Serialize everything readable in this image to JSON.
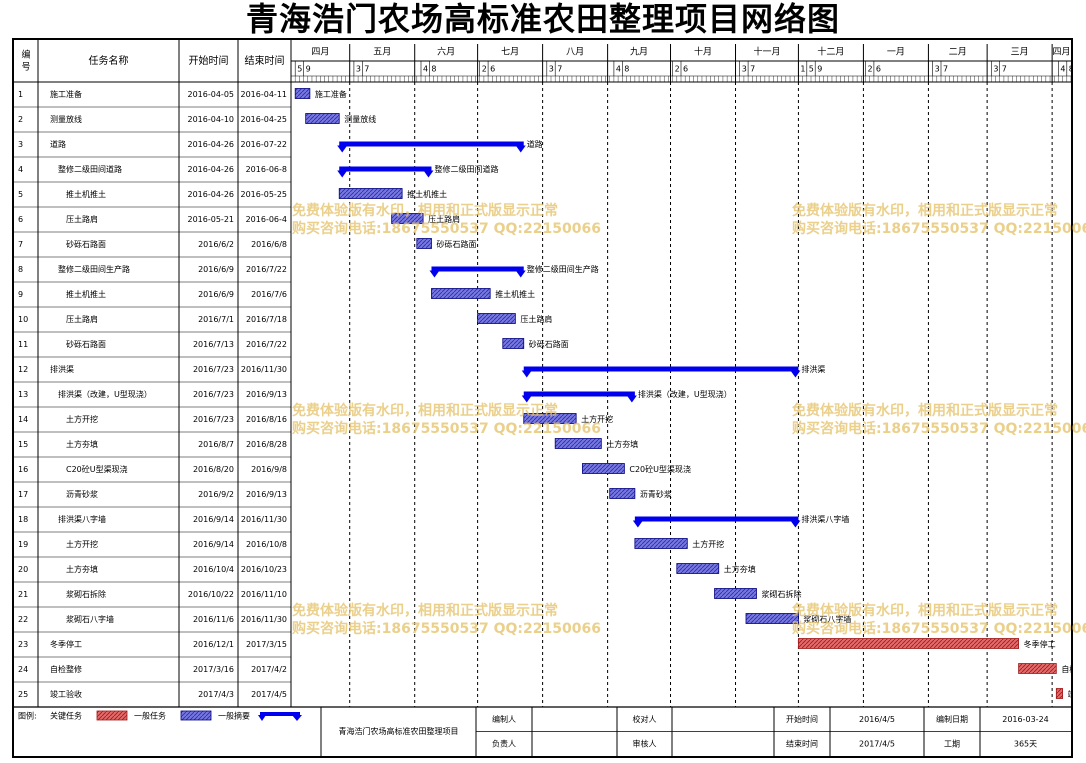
{
  "title": "青海浩门农场高标准农田整理项目网络图",
  "table_headers": {
    "id": "编号",
    "name": "任务名称",
    "start": "开始时间",
    "end": "结束时间"
  },
  "timeline": {
    "months": [
      "四月",
      "五月",
      "六月",
      "七月",
      "八月",
      "九月",
      "十月",
      "十一月",
      "十二月",
      "一月",
      "二月",
      "三月",
      "四月"
    ],
    "day_ticks": [
      {
        "d": "2016-04-05",
        "label": "5"
      },
      {
        "d": "2016-04-09",
        "label": "9"
      },
      {
        "d": "2016-05-03",
        "label": "3"
      },
      {
        "d": "2016-05-07",
        "label": "7"
      },
      {
        "d": "2016-06-04",
        "label": "4"
      },
      {
        "d": "2016-06-08",
        "label": "8"
      },
      {
        "d": "2016-07-02",
        "label": "2"
      },
      {
        "d": "2016-07-06",
        "label": "6"
      },
      {
        "d": "2016-08-03",
        "label": "3"
      },
      {
        "d": "2016-08-07",
        "label": "7"
      },
      {
        "d": "2016-09-04",
        "label": "4"
      },
      {
        "d": "2016-09-08",
        "label": "8"
      },
      {
        "d": "2016-10-02",
        "label": "2"
      },
      {
        "d": "2016-10-06",
        "label": "6"
      },
      {
        "d": "2016-11-03",
        "label": "3"
      },
      {
        "d": "2016-11-07",
        "label": "7"
      },
      {
        "d": "2016-12-01",
        "label": "1"
      },
      {
        "d": "2016-12-05",
        "label": "5"
      },
      {
        "d": "2016-12-09",
        "label": "9"
      },
      {
        "d": "2017-01-02",
        "label": "2"
      },
      {
        "d": "2017-01-06",
        "label": "6"
      },
      {
        "d": "2017-02-03",
        "label": "3"
      },
      {
        "d": "2017-02-07",
        "label": "7"
      },
      {
        "d": "2017-03-03",
        "label": "3"
      },
      {
        "d": "2017-03-07",
        "label": "7"
      },
      {
        "d": "2017-04-04",
        "label": "4"
      },
      {
        "d": "2017-04-08",
        "label": "8"
      }
    ]
  },
  "chart_data": {
    "type": "gantt",
    "title": "青海浩门农场高标准农田整理项目网络图",
    "x_range": [
      "2016-04-03",
      "2017-04-10"
    ],
    "tasks": [
      {
        "id": "1",
        "name": "施工准备",
        "indent": 0,
        "start": "2016-04-05",
        "end": "2016-04-11",
        "kind": "general"
      },
      {
        "id": "2",
        "name": "测量放线",
        "indent": 0,
        "start": "2016-04-10",
        "end": "2016-04-25",
        "kind": "general"
      },
      {
        "id": "3",
        "name": "道路",
        "indent": 0,
        "start": "2016-04-26",
        "end": "2016-07-22",
        "kind": "summary"
      },
      {
        "id": "4",
        "name": "整修二级田间道路",
        "indent": 1,
        "start": "2016-04-26",
        "end": "2016-06-8",
        "kind": "summary"
      },
      {
        "id": "5",
        "name": "推土机推土",
        "indent": 2,
        "start": "2016-04-26",
        "end": "2016-05-25",
        "kind": "general"
      },
      {
        "id": "6",
        "name": "压土路肩",
        "indent": 2,
        "start": "2016-05-21",
        "end": "2016-06-4",
        "kind": "general"
      },
      {
        "id": "7",
        "name": "砂砾石路面",
        "indent": 2,
        "start": "2016/6/2",
        "end": "2016/6/8",
        "kind": "general"
      },
      {
        "id": "8",
        "name": "整修二级田间生产路",
        "indent": 1,
        "start": "2016/6/9",
        "end": "2016/7/22",
        "kind": "summary"
      },
      {
        "id": "9",
        "name": "推土机推土",
        "indent": 2,
        "start": "2016/6/9",
        "end": "2016/7/6",
        "kind": "general"
      },
      {
        "id": "10",
        "name": "压土路肩",
        "indent": 2,
        "start": "2016/7/1",
        "end": "2016/7/18",
        "kind": "general"
      },
      {
        "id": "11",
        "name": "砂砾石路面",
        "indent": 2,
        "start": "2016/7/13",
        "end": "2016/7/22",
        "kind": "general"
      },
      {
        "id": "12",
        "name": "排洪渠",
        "indent": 0,
        "start": "2016/7/23",
        "end": "2016/11/30",
        "kind": "summary"
      },
      {
        "id": "13",
        "name": "排洪渠（改建，U型现浇）",
        "indent": 1,
        "start": "2016/7/23",
        "end": "2016/9/13",
        "kind": "summary"
      },
      {
        "id": "14",
        "name": "土方开挖",
        "indent": 2,
        "start": "2016/7/23",
        "end": "2016/8/16",
        "kind": "general"
      },
      {
        "id": "15",
        "name": "土方夯填",
        "indent": 2,
        "start": "2016/8/7",
        "end": "2016/8/28",
        "kind": "general"
      },
      {
        "id": "16",
        "name": "C20砼U型渠现浇",
        "indent": 2,
        "start": "2016/8/20",
        "end": "2016/9/8",
        "kind": "general"
      },
      {
        "id": "17",
        "name": "沥青砂浆",
        "indent": 2,
        "start": "2016/9/2",
        "end": "2016/9/13",
        "kind": "general"
      },
      {
        "id": "18",
        "name": "排洪渠八字墙",
        "indent": 1,
        "start": "2016/9/14",
        "end": "2016/11/30",
        "kind": "summary"
      },
      {
        "id": "19",
        "name": "土方开挖",
        "indent": 2,
        "start": "2016/9/14",
        "end": "2016/10/8",
        "kind": "general"
      },
      {
        "id": "20",
        "name": "土方夯填",
        "indent": 2,
        "start": "2016/10/4",
        "end": "2016/10/23",
        "kind": "general"
      },
      {
        "id": "21",
        "name": "浆砌石拆除",
        "indent": 2,
        "start": "2016/10/22",
        "end": "2016/11/10",
        "kind": "general"
      },
      {
        "id": "22",
        "name": "浆砌石八字墙",
        "indent": 2,
        "start": "2016/11/6",
        "end": "2016/11/30",
        "kind": "general"
      },
      {
        "id": "23",
        "name": "冬季停工",
        "indent": 0,
        "start": "2016/12/1",
        "end": "2017/3/15",
        "kind": "critical"
      },
      {
        "id": "24",
        "name": "自检整修",
        "indent": 0,
        "start": "2017/3/16",
        "end": "2017/4/2",
        "kind": "critical"
      },
      {
        "id": "25",
        "name": "竣工验收",
        "indent": 0,
        "start": "2017/4/3",
        "end": "2017/4/5",
        "kind": "critical"
      }
    ]
  },
  "legend": {
    "label": "图例:",
    "critical": "关键任务",
    "general": "一般任务",
    "summary": "一般摘要"
  },
  "footer": {
    "project_name": "青海浩门农场高标准农田整理项目",
    "compiler_label": "编制人",
    "checker_label": "校对人",
    "owner_label": "负责人",
    "reviewer_label": "审核人",
    "start_label": "开始时间",
    "start_value": "2016/4/5",
    "end_label": "结束时间",
    "end_value": "2017/4/5",
    "date_label": "编制日期",
    "date_value": "2016-03-24",
    "duration_label": "工期",
    "duration_value": "365天"
  },
  "watermark": {
    "line1": "免费体验版有水印，相用和正式版显示正常",
    "line2": "购买咨询电话:18675550537 QQ:22150066"
  },
  "colors": {
    "summary": "#0000ee",
    "general_fill": "#6666dd",
    "general_stroke": "#000080",
    "critical_fill": "#dd4444",
    "grid": "#000000"
  }
}
